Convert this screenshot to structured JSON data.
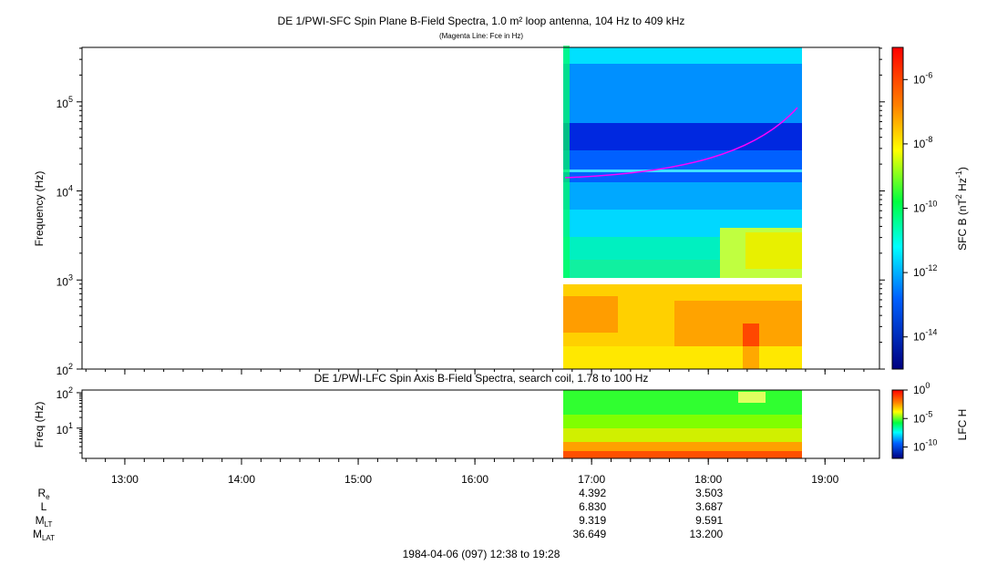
{
  "top_panel": {
    "title": "DE 1/PWI-SFC  Spin Plane B-Field Spectra, 1.0 m² loop antenna, 104 Hz to 409 kHz",
    "subtitle": "(Magenta Line: Fce in Hz)",
    "y_label": "Frequency (Hz)",
    "ylim": [
      100,
      409000
    ],
    "yticks": [
      {
        "value": 100,
        "base": "10",
        "power": "2"
      },
      {
        "value": 1000,
        "base": "10",
        "power": "3"
      },
      {
        "value": 10000,
        "base": "10",
        "power": "4"
      },
      {
        "value": 100000,
        "base": "10",
        "power": "5"
      }
    ],
    "colorbar_label": [
      "SFC B (nT",
      "2",
      " Hz",
      "-1",
      ")"
    ],
    "colorbar_lim": [
      1e-15,
      1e-05
    ],
    "colorbar_ticks": [
      {
        "value": 1e-06,
        "base": "10",
        "power": "-6"
      },
      {
        "value": 1e-08,
        "base": "10",
        "power": "-8"
      },
      {
        "value": 1e-10,
        "base": "10",
        "power": "-10"
      },
      {
        "value": 1e-12,
        "base": "10",
        "power": "-12"
      },
      {
        "value": 1e-14,
        "base": "10",
        "power": "-14"
      }
    ]
  },
  "bottom_panel": {
    "title": "DE 1/PWI-LFC  Spin Axis B-Field Spectra, search coil, 1.78 to 100 Hz",
    "y_label": "Freq (Hz)",
    "ylim": [
      1.4,
      119
    ],
    "yticks": [
      {
        "value": 10,
        "base": "10",
        "power": "1"
      },
      {
        "value": 100,
        "base": "10",
        "power": "2"
      }
    ],
    "colorbar_label": "LFC H",
    "colorbar_lim": [
      1e-12,
      1
    ],
    "colorbar_ticks": [
      {
        "value": 1,
        "base": "10",
        "power": "0"
      },
      {
        "value": 1e-05,
        "base": "10",
        "power": "-5"
      },
      {
        "value": 1e-10,
        "base": "10",
        "power": "-10"
      }
    ]
  },
  "time_axis": {
    "xlim": [
      12.6333,
      19.4667
    ],
    "xticks": [
      {
        "value": 13,
        "label": "13:00"
      },
      {
        "value": 14,
        "label": "14:00"
      },
      {
        "value": 15,
        "label": "15:00"
      },
      {
        "value": 16,
        "label": "16:00"
      },
      {
        "value": 17,
        "label": "17:00"
      },
      {
        "value": 18,
        "label": "18:00"
      },
      {
        "value": 19,
        "label": "19:00"
      }
    ]
  },
  "ephemeris": {
    "rows": [
      {
        "label": "R",
        "sub": "e",
        "values": [
          "4.392",
          "3.503"
        ]
      },
      {
        "label": "L",
        "sub": "",
        "values": [
          "6.830",
          "3.687"
        ]
      },
      {
        "label": "M",
        "sub": "LT",
        "values": [
          "9.319",
          "9.591"
        ]
      },
      {
        "label": "M",
        "sub": "LAT",
        "values": [
          "36.649",
          "13.200"
        ]
      }
    ],
    "columns": [
      17,
      18
    ]
  },
  "footer": "1984-04-06 (097) 12:38 to 19:28"
}
